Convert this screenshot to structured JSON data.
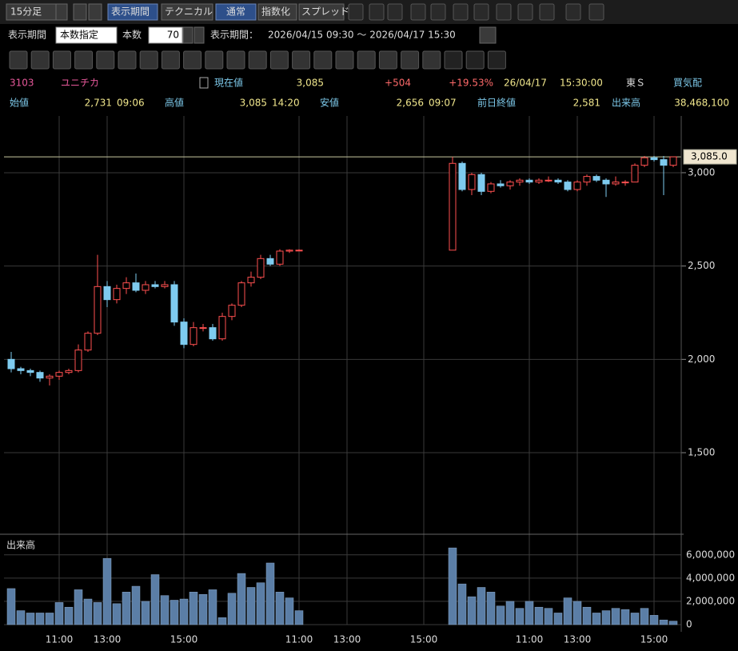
{
  "toolbar": {
    "interval": "15分足",
    "period_button": "表示期間",
    "technical": "テクニカル",
    "normal": "通常",
    "index": "指数化",
    "spread": "スプレッド"
  },
  "settings": {
    "period_label": "表示期間",
    "mode": "本数指定",
    "count_label": "本数",
    "count": "70",
    "range_label": "表示期間：",
    "range": "2026/04/15 09:30 〜 2026/04/17 15:30"
  },
  "quote": {
    "code": "3103",
    "name": "ユニチカ",
    "price_label": "現在値",
    "price": "3,085",
    "change": "+504",
    "change_pct": "+19.53%",
    "date": "26/04/17",
    "time": "15:30:00",
    "market": "東Ｓ",
    "status": "買気配",
    "open_label": "始値",
    "open": "2,731",
    "open_time": "09:06",
    "high_label": "高値",
    "high": "3,085",
    "high_time": "14:20",
    "low_label": "安値",
    "low": "2,656",
    "low_time": "09:07",
    "prev_label": "前日終値",
    "prev": "2,581",
    "volume_label": "出来高",
    "volume": "38,468,100"
  },
  "chart_data": {
    "type": "candlestick",
    "categories": [
      null,
      null,
      null,
      null,
      null,
      "11:00",
      null,
      null,
      null,
      null,
      "13:00",
      null,
      null,
      null,
      null,
      null,
      null,
      null,
      "15:00",
      null,
      null,
      null,
      null,
      null,
      null,
      null,
      null,
      null,
      null,
      null,
      "11:00",
      null,
      null,
      null,
      null,
      "13:00",
      null,
      null,
      null,
      null,
      null,
      null,
      null,
      "15:00",
      null,
      null,
      null,
      null,
      null,
      null,
      null,
      null,
      null,
      null,
      "11:00",
      null,
      null,
      null,
      null,
      "13:00",
      null,
      null,
      null,
      null,
      null,
      null,
      null,
      "15:00",
      null,
      null
    ],
    "open": [
      2000,
      1950,
      1940,
      1930,
      1900,
      1910,
      1930,
      1940,
      2050,
      2140,
      2390,
      2320,
      2380,
      2410,
      2370,
      2400,
      2390,
      2400,
      2200,
      2080,
      2170,
      2170,
      2110,
      2230,
      2290,
      2410,
      2440,
      2540,
      2510,
      2580,
      2585,
      null,
      null,
      null,
      null,
      null,
      null,
      null,
      null,
      null,
      null,
      null,
      null,
      null,
      null,
      null,
      2585,
      3050,
      2910,
      2990,
      2900,
      2940,
      2930,
      2950,
      2960,
      2950,
      2960,
      2960,
      2950,
      2910,
      2950,
      2980,
      2960,
      2940,
      2950,
      2950,
      3040,
      3080,
      3070,
      3040
    ],
    "high": [
      2040,
      1960,
      1950,
      1940,
      1920,
      1940,
      1950,
      2080,
      2150,
      2560,
      2420,
      2400,
      2440,
      2460,
      2420,
      2420,
      2420,
      2420,
      2220,
      2200,
      2190,
      2190,
      2250,
      2300,
      2420,
      2470,
      2560,
      2560,
      2590,
      2590,
      2590,
      null,
      null,
      null,
      null,
      null,
      null,
      null,
      null,
      null,
      null,
      null,
      null,
      null,
      null,
      null,
      3085,
      3060,
      3000,
      3000,
      2950,
      2960,
      2960,
      2970,
      2970,
      2970,
      2980,
      2970,
      2960,
      2960,
      2990,
      2990,
      2970,
      2980,
      2960,
      3050,
      3090,
      3090,
      3090,
      3085
    ],
    "low": [
      1930,
      1920,
      1910,
      1880,
      1860,
      1890,
      1920,
      1930,
      2040,
      2130,
      2280,
      2300,
      2350,
      2360,
      2350,
      2380,
      2380,
      2180,
      2060,
      2070,
      2150,
      2100,
      2100,
      2210,
      2280,
      2390,
      2430,
      2500,
      2500,
      2570,
      2580,
      null,
      null,
      null,
      null,
      null,
      null,
      null,
      null,
      null,
      null,
      null,
      null,
      null,
      null,
      null,
      2585,
      2900,
      2880,
      2880,
      2890,
      2920,
      2910,
      2930,
      2940,
      2940,
      2950,
      2940,
      2900,
      2900,
      2930,
      2950,
      2870,
      2930,
      2930,
      2950,
      3030,
      3060,
      2880,
      3030
    ],
    "close": [
      1950,
      1940,
      1930,
      1900,
      1910,
      1930,
      1940,
      2050,
      2140,
      2390,
      2320,
      2380,
      2410,
      2370,
      2400,
      2390,
      2400,
      2200,
      2080,
      2170,
      2170,
      2110,
      2230,
      2290,
      2410,
      2440,
      2540,
      2510,
      2580,
      2585,
      2585,
      null,
      null,
      null,
      null,
      null,
      null,
      null,
      null,
      null,
      null,
      null,
      null,
      null,
      null,
      null,
      3050,
      2910,
      2990,
      2900,
      2940,
      2930,
      2950,
      2960,
      2950,
      2960,
      2960,
      2950,
      2910,
      2950,
      2980,
      2960,
      2940,
      2950,
      2950,
      3040,
      3080,
      3070,
      3040,
      3085
    ],
    "volume": [
      3100000,
      1200000,
      1000000,
      1000000,
      1000000,
      1900000,
      1500000,
      3000000,
      2200000,
      1900000,
      5700000,
      1800000,
      2800000,
      3300000,
      2000000,
      4300000,
      2500000,
      2100000,
      2200000,
      2800000,
      2600000,
      3000000,
      600000,
      2700000,
      4400000,
      3200000,
      3600000,
      5300000,
      2800000,
      2300000,
      1200000,
      null,
      null,
      null,
      null,
      null,
      null,
      null,
      null,
      null,
      null,
      null,
      null,
      null,
      null,
      null,
      6600000,
      3500000,
      2400000,
      3200000,
      2800000,
      1600000,
      2000000,
      1400000,
      2000000,
      1500000,
      1400000,
      1000000,
      2300000,
      2000000,
      1500000,
      1000000,
      1200000,
      1400000,
      1300000,
      1000000,
      1400000,
      800000,
      400000,
      300000
    ],
    "ylim": [
      1076,
      3304
    ],
    "yticks": [
      {
        "value": 1500,
        "label": "1,500"
      },
      {
        "value": 2000,
        "label": "2,000"
      },
      {
        "value": 2500,
        "label": "2,500"
      },
      {
        "value": 3000,
        "label": "3,000"
      }
    ],
    "volume_ylim": [
      0,
      7500000
    ],
    "volume_yticks": [
      0,
      {
        "value": 2000000,
        "label": "2,000,000"
      },
      {
        "value": 4000000,
        "label": "4,000,000"
      },
      {
        "value": 6000000,
        "label": "6,000,000"
      }
    ],
    "volume_title": "出来高",
    "last_price": 3085,
    "last_price_label": "3,085.0",
    "up_color": "#ff5050",
    "down_color": "#7ecbef",
    "volume_color": "#5b7ea6"
  }
}
